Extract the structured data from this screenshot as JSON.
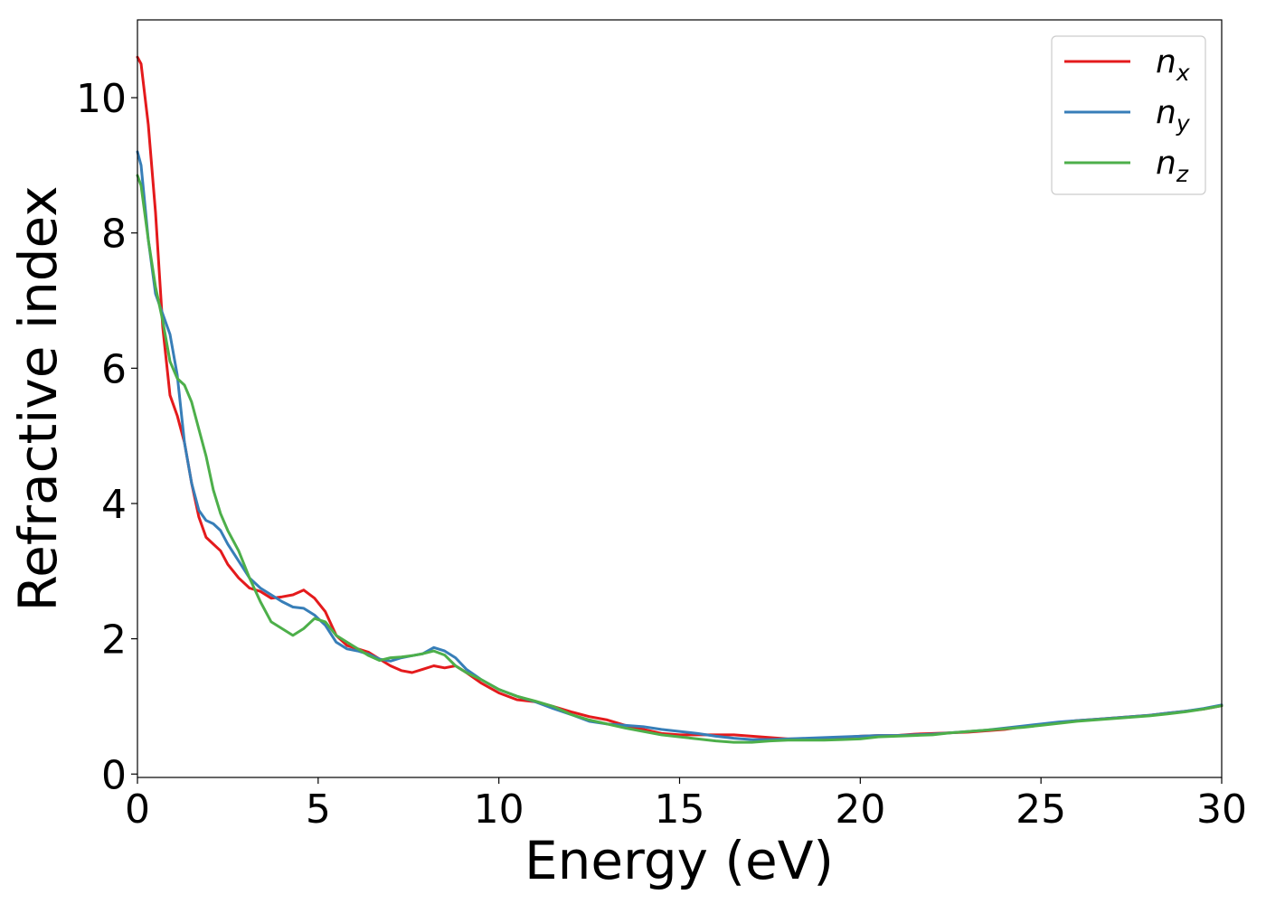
{
  "chart_data": {
    "type": "line",
    "xlabel": "Energy (eV)",
    "ylabel": "Refractive index",
    "xlim": [
      0,
      30
    ],
    "ylim": [
      -0.05,
      11.15
    ],
    "xticks": [
      0,
      5,
      10,
      15,
      20,
      25,
      30
    ],
    "yticks": [
      0,
      2,
      4,
      6,
      8,
      10
    ],
    "grid": false,
    "legend_position": "top-right",
    "series": [
      {
        "name": "n_x",
        "label_base": "n",
        "label_sub": "x",
        "color": "#e41a1c",
        "x": [
          0,
          0.1,
          0.3,
          0.5,
          0.7,
          0.9,
          1.1,
          1.3,
          1.5,
          1.7,
          1.9,
          2.1,
          2.3,
          2.5,
          2.8,
          3.1,
          3.4,
          3.7,
          4.0,
          4.3,
          4.6,
          4.9,
          5.2,
          5.5,
          5.8,
          6.1,
          6.4,
          6.7,
          7.0,
          7.3,
          7.6,
          7.9,
          8.2,
          8.5,
          8.8,
          9.1,
          9.5,
          10.0,
          10.5,
          11.0,
          11.5,
          12.0,
          12.5,
          13.0,
          13.5,
          14.0,
          14.5,
          15.0,
          15.5,
          16.0,
          16.5,
          17.0,
          17.5,
          18.0,
          18.5,
          19.0,
          19.5,
          20.0,
          20.5,
          21.0,
          21.5,
          22.0,
          22.5,
          23.0,
          23.5,
          24.0,
          24.5,
          25.0,
          25.5,
          26.0,
          26.5,
          27.0,
          27.5,
          28.0,
          28.5,
          29.0,
          29.5,
          30.0
        ],
        "y": [
          10.6,
          10.5,
          9.6,
          8.3,
          6.6,
          5.6,
          5.3,
          4.9,
          4.3,
          3.8,
          3.5,
          3.4,
          3.3,
          3.1,
          2.9,
          2.75,
          2.7,
          2.6,
          2.62,
          2.65,
          2.72,
          2.6,
          2.4,
          2.05,
          1.9,
          1.85,
          1.8,
          1.7,
          1.6,
          1.53,
          1.5,
          1.55,
          1.6,
          1.57,
          1.6,
          1.5,
          1.35,
          1.2,
          1.1,
          1.07,
          1.0,
          0.92,
          0.85,
          0.8,
          0.72,
          0.66,
          0.6,
          0.58,
          0.58,
          0.58,
          0.58,
          0.56,
          0.54,
          0.52,
          0.52,
          0.53,
          0.54,
          0.56,
          0.57,
          0.57,
          0.59,
          0.6,
          0.61,
          0.62,
          0.64,
          0.66,
          0.7,
          0.73,
          0.76,
          0.79,
          0.81,
          0.83,
          0.85,
          0.87,
          0.9,
          0.93,
          0.96,
          1.01
        ]
      },
      {
        "name": "n_y",
        "label_base": "n",
        "label_sub": "y",
        "color": "#377eb8",
        "x": [
          0,
          0.1,
          0.3,
          0.5,
          0.7,
          0.9,
          1.1,
          1.3,
          1.5,
          1.7,
          1.9,
          2.1,
          2.3,
          2.5,
          2.8,
          3.1,
          3.4,
          3.7,
          4.0,
          4.3,
          4.6,
          4.9,
          5.2,
          5.5,
          5.8,
          6.1,
          6.4,
          6.7,
          7.0,
          7.3,
          7.6,
          7.9,
          8.2,
          8.5,
          8.8,
          9.1,
          9.5,
          10.0,
          10.5,
          11.0,
          11.5,
          12.0,
          12.5,
          13.0,
          13.5,
          14.0,
          14.5,
          15.0,
          15.5,
          16.0,
          16.5,
          17.0,
          17.5,
          18.0,
          18.5,
          19.0,
          19.5,
          20.0,
          20.5,
          21.0,
          21.5,
          22.0,
          22.5,
          23.0,
          23.5,
          24.0,
          24.5,
          25.0,
          25.5,
          26.0,
          26.5,
          27.0,
          27.5,
          28.0,
          28.5,
          29.0,
          29.5,
          30.0
        ],
        "y": [
          9.2,
          9.0,
          7.9,
          7.1,
          6.8,
          6.5,
          5.9,
          4.9,
          4.3,
          3.9,
          3.75,
          3.7,
          3.6,
          3.4,
          3.15,
          2.9,
          2.75,
          2.65,
          2.55,
          2.47,
          2.45,
          2.35,
          2.2,
          1.95,
          1.85,
          1.82,
          1.77,
          1.7,
          1.67,
          1.72,
          1.75,
          1.78,
          1.87,
          1.82,
          1.72,
          1.55,
          1.4,
          1.25,
          1.15,
          1.07,
          0.97,
          0.88,
          0.78,
          0.74,
          0.72,
          0.7,
          0.66,
          0.63,
          0.6,
          0.56,
          0.53,
          0.51,
          0.51,
          0.52,
          0.53,
          0.54,
          0.55,
          0.56,
          0.57,
          0.57,
          0.58,
          0.59,
          0.61,
          0.63,
          0.65,
          0.68,
          0.71,
          0.74,
          0.77,
          0.79,
          0.81,
          0.83,
          0.85,
          0.87,
          0.9,
          0.93,
          0.97,
          1.02
        ]
      },
      {
        "name": "n_z",
        "label_base": "n",
        "label_sub": "z",
        "color": "#4daf4a",
        "x": [
          0,
          0.1,
          0.3,
          0.5,
          0.7,
          0.9,
          1.1,
          1.3,
          1.5,
          1.7,
          1.9,
          2.1,
          2.3,
          2.5,
          2.8,
          3.1,
          3.4,
          3.7,
          4.0,
          4.3,
          4.6,
          4.9,
          5.2,
          5.5,
          5.8,
          6.1,
          6.4,
          6.7,
          7.0,
          7.3,
          7.6,
          7.9,
          8.2,
          8.5,
          8.8,
          9.1,
          9.5,
          10.0,
          10.5,
          11.0,
          11.5,
          12.0,
          12.5,
          13.0,
          13.5,
          14.0,
          14.5,
          15.0,
          15.5,
          16.0,
          16.5,
          17.0,
          17.5,
          18.0,
          18.5,
          19.0,
          19.5,
          20.0,
          20.5,
          21.0,
          21.5,
          22.0,
          22.5,
          23.0,
          23.5,
          24.0,
          24.5,
          25.0,
          25.5,
          26.0,
          26.5,
          27.0,
          27.5,
          28.0,
          28.5,
          29.0,
          29.5,
          30.0
        ],
        "y": [
          8.85,
          8.7,
          7.9,
          7.2,
          6.7,
          6.1,
          5.85,
          5.75,
          5.5,
          5.1,
          4.7,
          4.2,
          3.85,
          3.6,
          3.3,
          2.9,
          2.55,
          2.25,
          2.15,
          2.05,
          2.15,
          2.3,
          2.25,
          2.05,
          1.95,
          1.85,
          1.75,
          1.68,
          1.72,
          1.73,
          1.75,
          1.78,
          1.82,
          1.76,
          1.6,
          1.5,
          1.4,
          1.25,
          1.15,
          1.08,
          1.0,
          0.88,
          0.8,
          0.74,
          0.68,
          0.63,
          0.58,
          0.55,
          0.52,
          0.49,
          0.47,
          0.47,
          0.49,
          0.5,
          0.5,
          0.5,
          0.51,
          0.52,
          0.55,
          0.56,
          0.57,
          0.58,
          0.61,
          0.63,
          0.65,
          0.67,
          0.69,
          0.72,
          0.75,
          0.78,
          0.8,
          0.82,
          0.84,
          0.86,
          0.89,
          0.92,
          0.96,
          1.01
        ]
      }
    ]
  }
}
